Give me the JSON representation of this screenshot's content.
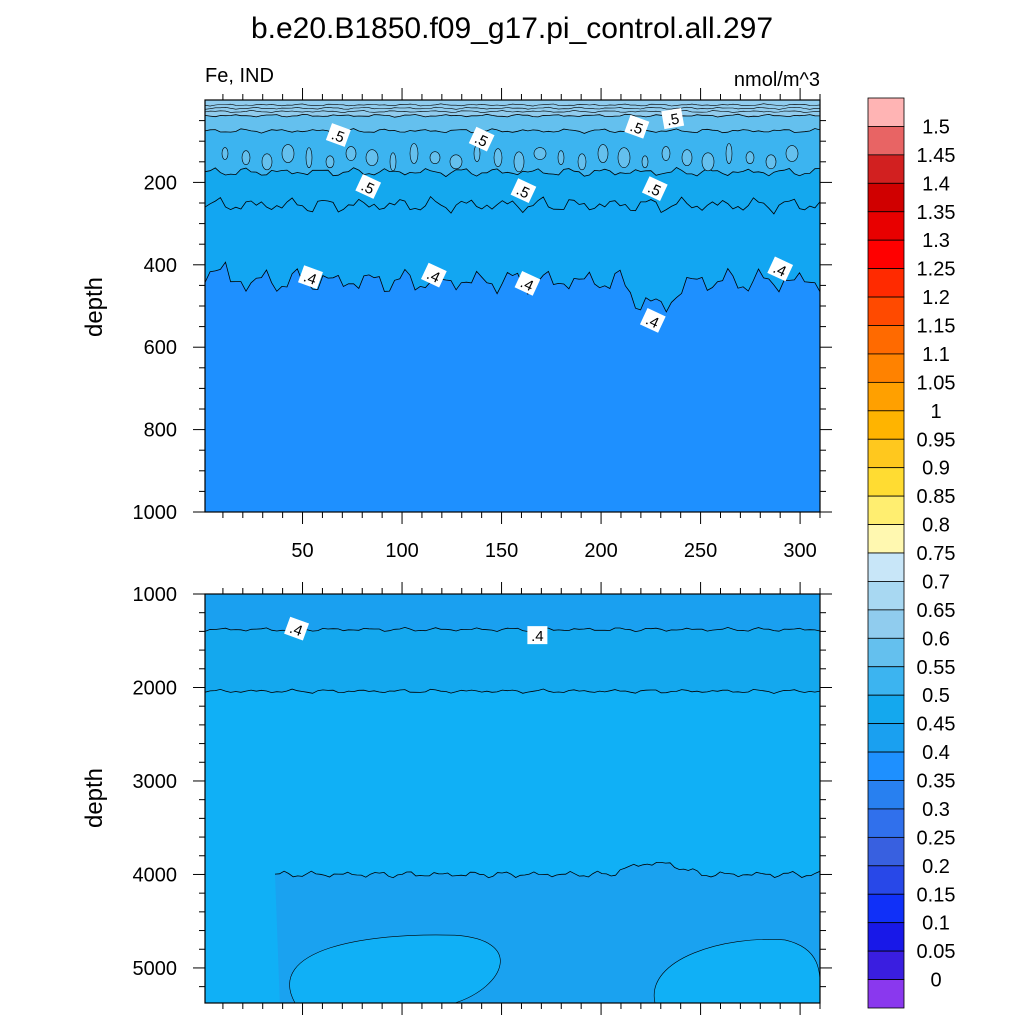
{
  "chart_data": {
    "type": "heatmap",
    "title": "b.e20.B1850.f09_g17.pi_control.all.297",
    "left_label": "Fe, IND",
    "units": "nmol/m^3",
    "panels": [
      {
        "name": "upper",
        "ylabel": "depth",
        "ylim": [
          1000,
          0
        ],
        "xlim": [
          1,
          310
        ],
        "xticks": [
          50,
          100,
          150,
          200,
          250,
          300
        ],
        "yticks": [
          200,
          400,
          600,
          800,
          1000
        ],
        "contour_labels": [
          {
            "text": ".5",
            "x": 68,
            "y": 85
          },
          {
            "text": ".5",
            "x": 140,
            "y": 95
          },
          {
            "text": ".5",
            "x": 218,
            "y": 65
          },
          {
            "text": ".5",
            "x": 236,
            "y": 45
          },
          {
            "text": ".5",
            "x": 83,
            "y": 210
          },
          {
            "text": ".5",
            "x": 161,
            "y": 220
          },
          {
            "text": ".5",
            "x": 227,
            "y": 215
          },
          {
            "text": ".4",
            "x": 54,
            "y": 430
          },
          {
            "text": ".4",
            "x": 116,
            "y": 425
          },
          {
            "text": ".4",
            "x": 163,
            "y": 445
          },
          {
            "text": ".4",
            "x": 226,
            "y": 535
          },
          {
            "text": ".4",
            "x": 290,
            "y": 410
          }
        ]
      },
      {
        "name": "lower",
        "ylabel": "depth",
        "ylim": [
          5375,
          1000
        ],
        "xlim": [
          1,
          310
        ],
        "yticks": [
          1000,
          2000,
          3000,
          4000,
          5000
        ],
        "contour_labels": [
          {
            "text": ".4",
            "x": 47,
            "y": 1370
          },
          {
            "text": ".4",
            "x": 168,
            "y": 1440
          }
        ]
      }
    ],
    "colorbar": {
      "labels": [
        "1.5",
        "1.45",
        "1.4",
        "1.35",
        "1.3",
        "1.25",
        "1.2",
        "1.15",
        "1.1",
        "1.05",
        "1",
        "0.95",
        "0.9",
        "0.85",
        "0.8",
        "0.75",
        "0.7",
        "0.65",
        "0.6",
        "0.55",
        "0.5",
        "0.45",
        "0.4",
        "0.35",
        "0.3",
        "0.25",
        "0.2",
        "0.15",
        "0.1",
        "0.05",
        "0"
      ],
      "colors": [
        "#ffb4b4",
        "#e86464",
        "#d22020",
        "#d00000",
        "#e80000",
        "#ff0000",
        "#ff2a00",
        "#ff4a00",
        "#ff6a00",
        "#ff8200",
        "#ffa000",
        "#ffb400",
        "#ffc81e",
        "#ffdc32",
        "#ffee70",
        "#fff8b0",
        "#c8e6f8",
        "#a8d8f2",
        "#90ccee",
        "#64c0ee",
        "#3cb4f0",
        "#14a8ee",
        "#1aa0f0",
        "#1e90ff",
        "#2880f0",
        "#3070ec",
        "#3860e0",
        "#2848e8",
        "#1030f8",
        "#1818e8",
        "#3a1ee0",
        "#8a38ee"
      ]
    }
  }
}
